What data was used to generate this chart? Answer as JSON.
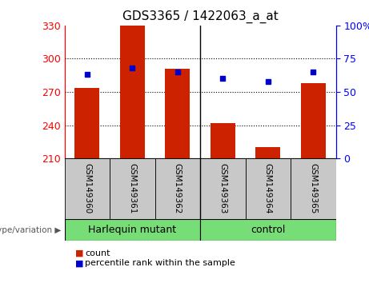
{
  "title": "GDS3365 / 1422063_a_at",
  "samples": [
    "GSM149360",
    "GSM149361",
    "GSM149362",
    "GSM149363",
    "GSM149364",
    "GSM149365"
  ],
  "counts": [
    274,
    330,
    291,
    242,
    220,
    278
  ],
  "percentile_ranks": [
    63,
    68,
    65,
    60,
    58,
    65
  ],
  "ylim_left": [
    210,
    330
  ],
  "ylim_right": [
    0,
    100
  ],
  "yticks_left": [
    210,
    240,
    270,
    300,
    330
  ],
  "yticks_right": [
    0,
    25,
    50,
    75,
    100
  ],
  "bar_color": "#cc2200",
  "dot_color": "#0000cc",
  "group1_label": "Harlequin mutant",
  "group2_label": "control",
  "group_bg_color": "#77dd77",
  "tick_area_color": "#c8c8c8",
  "legend_count_label": "count",
  "legend_percentile_label": "percentile rank within the sample",
  "genotype_label": "genotype/variation",
  "bar_width": 0.55
}
